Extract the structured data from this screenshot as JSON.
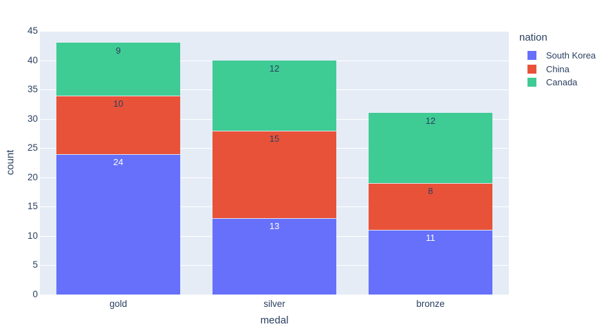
{
  "figure": {
    "background": "#ffffff",
    "plot_background": "#e5ecf6",
    "grid_color": "#ffffff",
    "text_color": "#2a3f5f",
    "segment_divider_color": "rgba(233,238,248,0.9)"
  },
  "chart_data": {
    "type": "bar",
    "stacked": true,
    "title": "",
    "xlabel": "medal",
    "ylabel": "count",
    "categories": [
      "gold",
      "silver",
      "bronze"
    ],
    "series": [
      {
        "name": "South Korea",
        "color": "#6670fa",
        "values": [
          24,
          13,
          11
        ],
        "label_color": "#ffffff"
      },
      {
        "name": "China",
        "color": "#e85239",
        "values": [
          10,
          15,
          8
        ],
        "label_color": "#2a3f5f"
      },
      {
        "name": "Canada",
        "color": "#3fcb94",
        "values": [
          9,
          12,
          12
        ],
        "label_color": "#2a3f5f"
      }
    ],
    "totals": [
      43,
      40,
      31
    ],
    "ylim": [
      0,
      45
    ],
    "yticks": [
      0,
      5,
      10,
      15,
      20,
      25,
      30,
      35,
      40,
      45
    ],
    "grid": true,
    "legend": {
      "title": "nation",
      "position": "top-right"
    }
  }
}
